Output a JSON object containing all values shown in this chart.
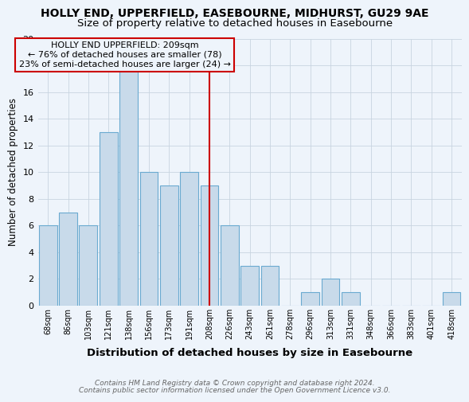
{
  "title": "HOLLY END, UPPERFIELD, EASEBOURNE, MIDHURST, GU29 9AE",
  "subtitle": "Size of property relative to detached houses in Easebourne",
  "xlabel": "Distribution of detached houses by size in Easebourne",
  "ylabel": "Number of detached properties",
  "footer1": "Contains HM Land Registry data © Crown copyright and database right 2024.",
  "footer2": "Contains public sector information licensed under the Open Government Licence v3.0.",
  "annotation_title": "HOLLY END UPPERFIELD: 209sqm",
  "annotation_line1": "← 76% of detached houses are smaller (78)",
  "annotation_line2": "23% of semi-detached houses are larger (24) →",
  "bar_labels": [
    "68sqm",
    "86sqm",
    "103sqm",
    "121sqm",
    "138sqm",
    "156sqm",
    "173sqm",
    "191sqm",
    "208sqm",
    "226sqm",
    "243sqm",
    "261sqm",
    "278sqm",
    "296sqm",
    "313sqm",
    "331sqm",
    "348sqm",
    "366sqm",
    "383sqm",
    "401sqm",
    "418sqm"
  ],
  "bar_values": [
    6,
    7,
    6,
    13,
    19,
    10,
    9,
    10,
    9,
    6,
    3,
    3,
    0,
    1,
    2,
    1,
    0,
    0,
    0,
    0,
    1
  ],
  "bar_color": "#c8daea",
  "bar_edge_color": "#6aaad0",
  "vline_index": 8,
  "vline_color": "#cc0000",
  "background_color": "#eef4fb",
  "ylim": [
    0,
    20
  ],
  "yticks": [
    0,
    2,
    4,
    6,
    8,
    10,
    12,
    14,
    16,
    18,
    20
  ],
  "title_fontsize": 10,
  "subtitle_fontsize": 9.5,
  "annotation_box_edge_color": "#cc0000",
  "grid_color": "#c8d4e0"
}
